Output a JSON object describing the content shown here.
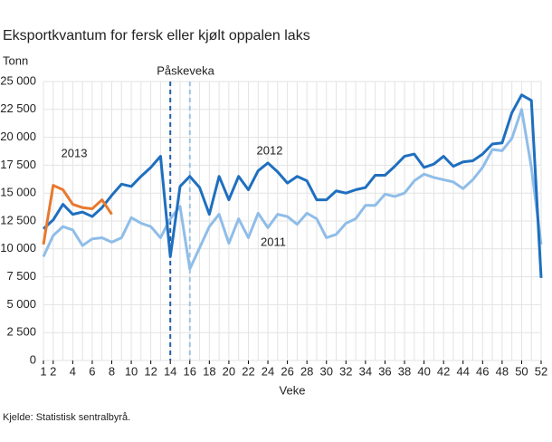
{
  "chart_data": {
    "type": "line",
    "title": "Eksportkvantum for fersk eller kjølt oppalen laks",
    "y_label": "Tonn",
    "x_label": "Veke",
    "source": "Kjelde: Statistisk sentralbyrå.",
    "annotation": "Påskeveka",
    "vlines": [
      {
        "x": 14,
        "color": "#1f5fae"
      },
      {
        "x": 16,
        "color": "#9cc4e4"
      }
    ],
    "x": [
      1,
      2,
      3,
      4,
      5,
      6,
      7,
      8,
      9,
      10,
      11,
      12,
      13,
      14,
      15,
      16,
      17,
      18,
      19,
      20,
      21,
      22,
      23,
      24,
      25,
      26,
      27,
      28,
      29,
      30,
      31,
      32,
      33,
      34,
      35,
      36,
      37,
      38,
      39,
      40,
      41,
      42,
      43,
      44,
      45,
      46,
      47,
      48,
      49,
      50,
      51,
      52
    ],
    "xlim": [
      1,
      52
    ],
    "xticks": [
      1,
      2,
      4,
      6,
      8,
      10,
      12,
      14,
      16,
      18,
      20,
      22,
      24,
      26,
      28,
      30,
      32,
      34,
      36,
      38,
      40,
      42,
      44,
      46,
      48,
      50,
      52
    ],
    "ylim": [
      0,
      25000
    ],
    "yticks": [
      0,
      {
        "value": 2500,
        "label": "2 500"
      },
      {
        "value": 5000,
        "label": "5 000"
      },
      {
        "value": 7500,
        "label": "7 500"
      },
      {
        "value": 10000,
        "label": "10 000"
      },
      {
        "value": 12500,
        "label": "12 500"
      },
      {
        "value": 15000,
        "label": "15 000"
      },
      {
        "value": 17500,
        "label": "17 500"
      },
      {
        "value": 20000,
        "label": "20 000"
      },
      {
        "value": 22500,
        "label": "22 500"
      },
      {
        "value": 25000,
        "label": "25 000"
      }
    ],
    "grid": true,
    "series": [
      {
        "name": "2011",
        "color": "#8fbde8",
        "values": [
          9300,
          11200,
          12000,
          11700,
          10300,
          10900,
          11000,
          10600,
          11000,
          12800,
          12300,
          12000,
          11000,
          12700,
          13800,
          8200,
          10100,
          12000,
          13100,
          10500,
          12700,
          11000,
          13200,
          11900,
          13100,
          12900,
          12200,
          13200,
          12700,
          11000,
          11300,
          12300,
          12700,
          13900,
          13900,
          14900,
          14700,
          15000,
          16100,
          16700,
          16400,
          16200,
          16000,
          15400,
          16200,
          17300,
          18900,
          18800,
          19900,
          22500,
          17300,
          10400
        ]
      },
      {
        "name": "2012",
        "color": "#1f6fbf",
        "values": [
          11800,
          12600,
          14000,
          13100,
          13300,
          12900,
          13700,
          14800,
          15800,
          15600,
          16500,
          17300,
          18300,
          9300,
          15600,
          16500,
          15500,
          13100,
          16500,
          14400,
          16500,
          15300,
          17000,
          17700,
          16900,
          15900,
          16500,
          16100,
          14400,
          14400,
          15200,
          15000,
          15300,
          15500,
          16600,
          16600,
          17400,
          18300,
          18500,
          17300,
          17600,
          18300,
          17400,
          17800,
          17900,
          18500,
          19400,
          19500,
          22200,
          23800,
          23300,
          7400
        ]
      },
      {
        "name": "2013",
        "color": "#e8792f",
        "values": [
          10400,
          15700,
          15300,
          14000,
          13700,
          13600,
          14400,
          13100,
          null,
          null,
          null,
          null,
          null,
          null,
          null,
          null,
          null,
          null,
          null,
          null,
          null,
          null,
          null,
          null,
          null,
          null,
          null,
          null,
          null,
          null,
          null,
          null,
          null,
          null,
          null,
          null,
          null,
          null,
          null,
          null,
          null,
          null,
          null,
          null,
          null,
          null,
          null,
          null,
          null,
          null,
          null,
          null
        ]
      }
    ]
  }
}
